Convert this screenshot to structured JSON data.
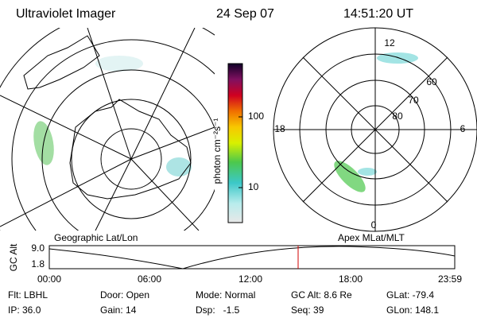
{
  "header": {
    "instrument": "Ultraviolet Imager",
    "date": "24 Sep 07",
    "time": "14:51:20 UT"
  },
  "left_map": {
    "label": "Geographic Lat/Lon"
  },
  "colorbar": {
    "label": "photon cm⁻²s⁻¹",
    "ticks": [
      "100",
      "10"
    ]
  },
  "right_map": {
    "label": "Apex MLat/MLT",
    "mlt_labels": [
      "12",
      "18",
      "6",
      "0"
    ],
    "lat_labels": [
      "60",
      "70",
      "80"
    ]
  },
  "timeline": {
    "ylabel": "GC Alt",
    "yticks": [
      "9.0",
      "1.8"
    ],
    "xticks": [
      "00:00",
      "06:00",
      "12:00",
      "18:00",
      "23:59"
    ]
  },
  "info": [
    [
      "Flt: LBHL",
      "Door: Open",
      "Mode: Normal",
      "GC Alt: 8.6 Re",
      "GLat: -79.4"
    ],
    [
      "IP: 36.0",
      "Gain: 14",
      "Dsp:   -1.5",
      "Seq: 39",
      "GLon: 148.1"
    ]
  ]
}
